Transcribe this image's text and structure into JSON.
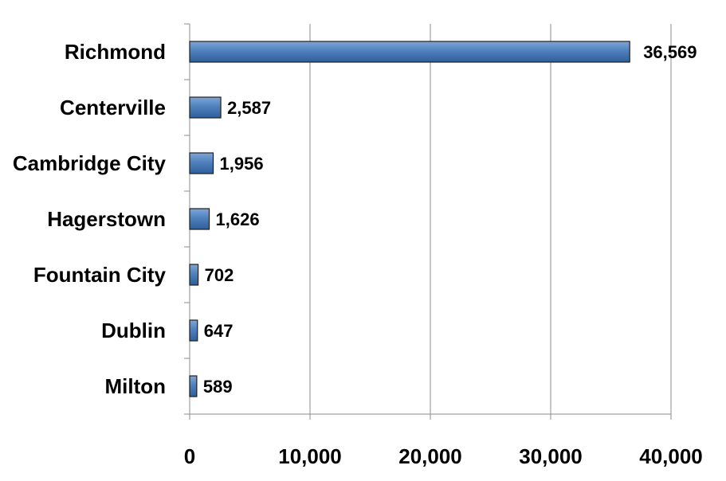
{
  "chart_data": {
    "type": "bar",
    "orientation": "horizontal",
    "categories": [
      "Richmond",
      "Centerville",
      "Cambridge City",
      "Hagerstown",
      "Fountain City",
      "Dublin",
      "Milton"
    ],
    "values": [
      36569,
      2587,
      1956,
      1626,
      702,
      647,
      589
    ],
    "value_labels": [
      "36,569",
      "2,587",
      "1,956",
      "1,626",
      "702",
      "647",
      "589"
    ],
    "xlim": [
      0,
      40000
    ],
    "xticks": [
      0,
      10000,
      20000,
      30000,
      40000
    ],
    "xtick_labels": [
      "0",
      "10,000",
      "20,000",
      "30,000",
      "40,000"
    ],
    "title": "",
    "xlabel": "",
    "ylabel": "",
    "grid": "vertical",
    "legend": "none",
    "bar_color": "#4f81bd",
    "bar_outline_color": "#1f1f1f"
  }
}
